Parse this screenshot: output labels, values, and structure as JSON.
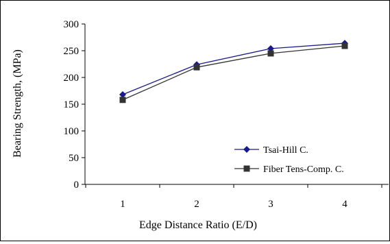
{
  "chart_data": {
    "type": "line",
    "title": "",
    "xlabel": "Edge Distance Ratio (E/D)",
    "ylabel": "Bearing Strength, (MPa)",
    "categories": [
      "1",
      "2",
      "3",
      "4"
    ],
    "x": [
      1,
      2,
      3,
      4
    ],
    "ylim": [
      0,
      300
    ],
    "yticks": [
      0,
      50,
      100,
      150,
      200,
      250,
      300
    ],
    "grid": false,
    "legend_position": "bottom-right",
    "series": [
      {
        "name": "Tsai-Hill C.",
        "values": [
          168,
          224,
          254,
          264
        ],
        "color": "#1a1a8c",
        "marker": "diamond"
      },
      {
        "name": "Fiber Tens-Comp. C.",
        "values": [
          158,
          219,
          245,
          259
        ],
        "color": "#333333",
        "marker": "square"
      }
    ]
  }
}
